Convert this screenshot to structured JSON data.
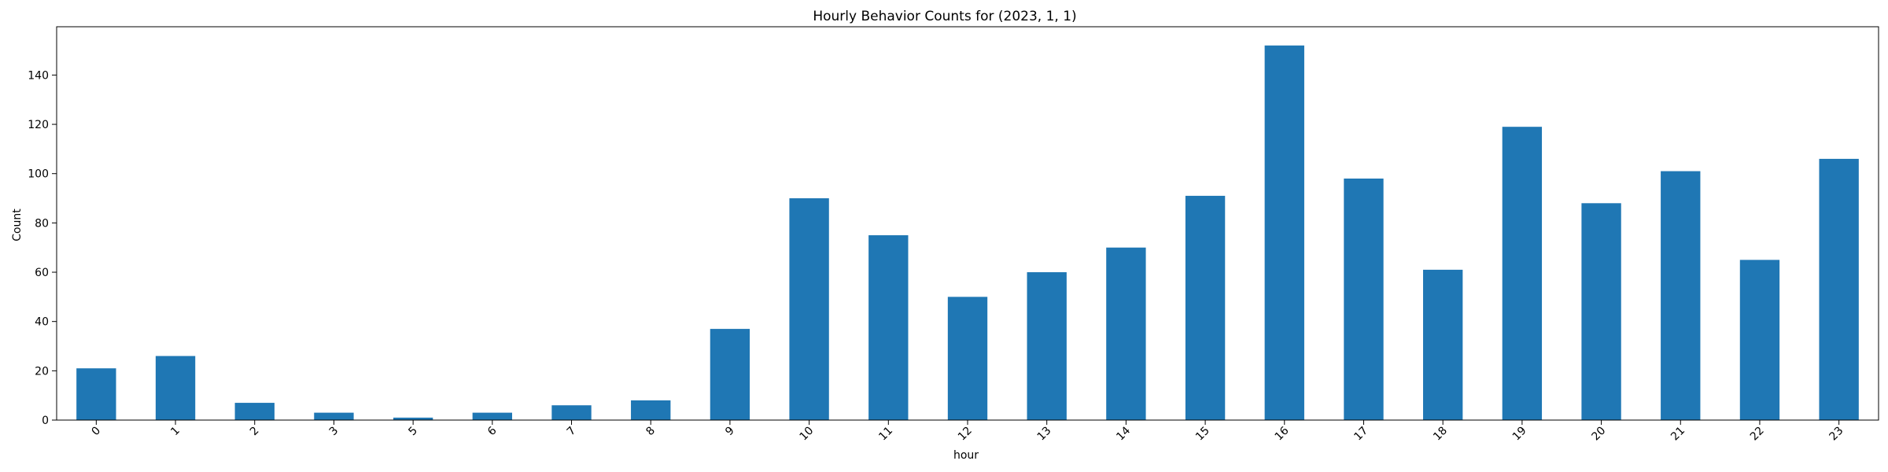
{
  "chart_data": {
    "type": "bar",
    "title": "Hourly Behavior Counts for (2023, 1, 1)",
    "xlabel": "hour",
    "ylabel": "Count",
    "categories": [
      "0",
      "1",
      "2",
      "3",
      "5",
      "6",
      "7",
      "8",
      "9",
      "10",
      "11",
      "12",
      "13",
      "14",
      "15",
      "16",
      "17",
      "18",
      "19",
      "20",
      "21",
      "22",
      "23"
    ],
    "values": [
      21,
      26,
      7,
      3,
      1,
      3,
      6,
      8,
      37,
      90,
      75,
      50,
      60,
      70,
      91,
      152,
      98,
      61,
      119,
      88,
      101,
      65,
      106
    ],
    "ylim": [
      0,
      159.6
    ],
    "yticks": [
      0,
      20,
      40,
      60,
      80,
      100,
      120,
      140
    ],
    "grid": false,
    "legend": "none",
    "bar_color": "#1f77b4"
  }
}
